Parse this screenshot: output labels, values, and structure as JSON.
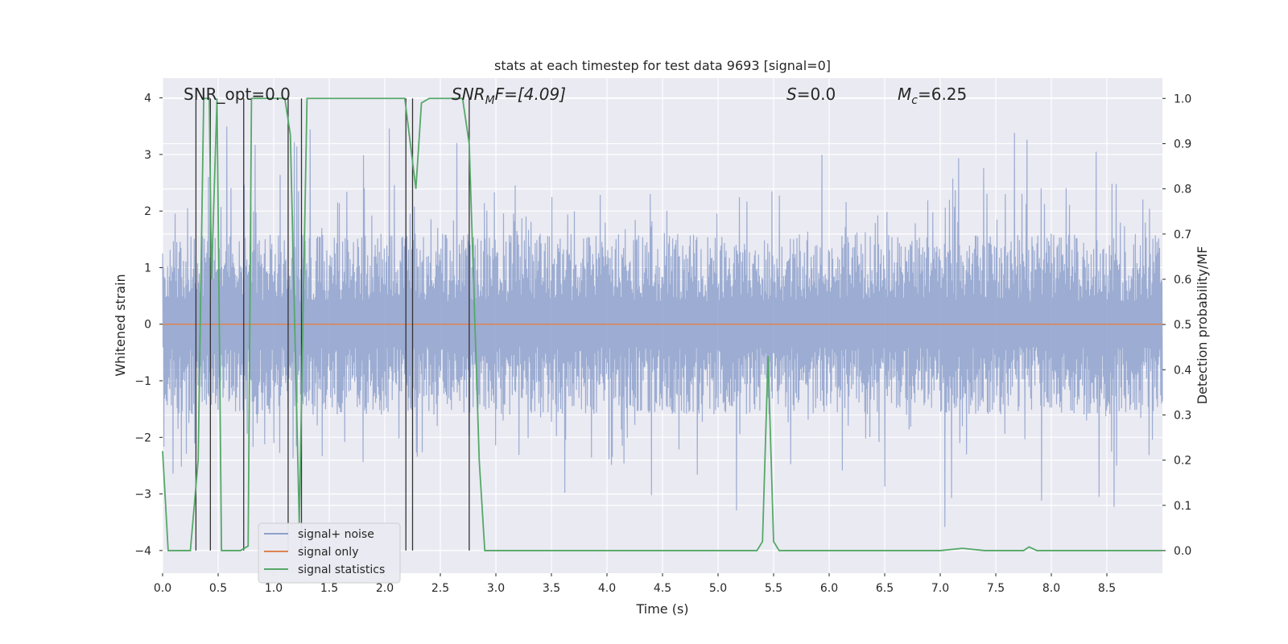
{
  "chart_data": {
    "type": "line",
    "title": "stats at each timestep for test data 9693 [signal=0]",
    "xlabel": "Time (s)",
    "ylabel_left": "Whitened strain",
    "ylabel_right": "Detection probability/MF",
    "xlim": [
      0.0,
      9.0
    ],
    "ylim_left": [
      -4.4,
      4.35
    ],
    "ylim_right": [
      -0.05,
      1.045
    ],
    "x_ticks": [
      "0.0",
      "0.5",
      "1.0",
      "1.5",
      "2.0",
      "2.5",
      "3.0",
      "3.5",
      "4.0",
      "4.5",
      "5.0",
      "5.5",
      "6.0",
      "6.5",
      "7.0",
      "7.5",
      "8.0",
      "8.5"
    ],
    "x_tick_values": [
      0.0,
      0.5,
      1.0,
      1.5,
      2.0,
      2.5,
      3.0,
      3.5,
      4.0,
      4.5,
      5.0,
      5.5,
      6.0,
      6.5,
      7.0,
      7.5,
      8.0,
      8.5
    ],
    "y_left_ticks": [
      "4",
      "3",
      "2",
      "1",
      "0",
      "−1",
      "−2",
      "−3",
      "−4"
    ],
    "y_left_tick_values": [
      4,
      3,
      2,
      1,
      0,
      -1,
      -2,
      -3,
      -4
    ],
    "y_right_ticks": [
      "1.0",
      "0.9",
      "0.8",
      "0.7",
      "0.6",
      "0.5",
      "0.4",
      "0.3",
      "0.2",
      "0.1",
      "0.0"
    ],
    "y_right_tick_values": [
      1.0,
      0.9,
      0.8,
      0.7,
      0.6,
      0.5,
      0.4,
      0.3,
      0.2,
      0.1,
      0.0
    ],
    "grid": true,
    "annotations": {
      "snr_opt": "SNR_opt=0.0",
      "snr_mf_main": "SNR",
      "snr_mf_sub": "M",
      "snr_mf_tail": "F=[4.09]",
      "s_main": "S",
      "s_tail": "=0.0",
      "mc_main": "M",
      "mc_sub": "c",
      "mc_tail": "=6.25"
    },
    "legend": {
      "placement": "lower-left",
      "entries": [
        {
          "label": "signal+ noise",
          "color": "#8ea1cc"
        },
        {
          "label": "signal only",
          "color": "#dd8452"
        },
        {
          "label": "signal statistics",
          "color": "#55a868"
        }
      ]
    },
    "noise_series": {
      "name": "signal+ noise",
      "color": "#8ea1cc",
      "description_values": {
        "typical_band": [
          -1.5,
          1.5
        ],
        "peak_max": 3.6,
        "peak_min": -3.8,
        "bias": 0.0
      }
    },
    "signal_only": {
      "name": "signal only",
      "color": "#dd8452",
      "x": [
        0.0,
        9.0
      ],
      "y": [
        0.0,
        0.0
      ]
    },
    "statistics": {
      "name": "signal statistics",
      "color": "#55a868",
      "x": [
        0.0,
        0.05,
        0.25,
        0.32,
        0.37,
        0.42,
        0.44,
        0.49,
        0.53,
        0.6,
        0.7,
        0.77,
        0.8,
        0.9,
        1.1,
        1.15,
        1.23,
        1.3,
        1.35,
        2.18,
        2.28,
        2.33,
        2.4,
        2.7,
        2.76,
        2.85,
        2.9,
        5.35,
        5.4,
        5.45,
        5.5,
        5.55,
        7.0,
        7.2,
        7.4,
        7.75,
        7.8,
        7.87,
        9.0
      ],
      "y": [
        0.22,
        0.0,
        0.0,
        0.2,
        1.0,
        1.0,
        0.6,
        1.0,
        0.0,
        0.0,
        0.0,
        0.01,
        1.0,
        1.0,
        1.0,
        0.92,
        0.06,
        1.0,
        1.0,
        1.0,
        0.8,
        0.99,
        1.0,
        1.0,
        0.9,
        0.2,
        0.0,
        0.0,
        0.02,
        0.43,
        0.02,
        0.0,
        0.0,
        0.005,
        0.0,
        0.0,
        0.008,
        0.0,
        0.0
      ]
    },
    "vertical_markers": {
      "color": "#333333",
      "x": [
        0.3,
        0.43,
        0.73,
        1.13,
        1.25,
        2.19,
        2.25,
        2.76
      ]
    }
  }
}
